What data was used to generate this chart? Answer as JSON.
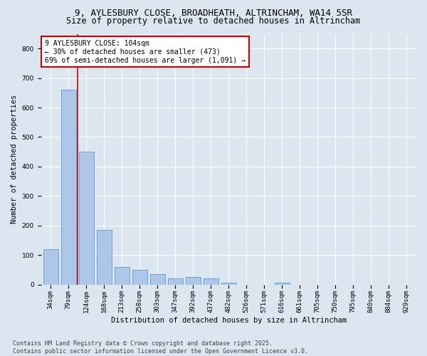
{
  "title_line1": "9, AYLESBURY CLOSE, BROADHEATH, ALTRINCHAM, WA14 5SR",
  "title_line2": "Size of property relative to detached houses in Altrincham",
  "xlabel": "Distribution of detached houses by size in Altrincham",
  "ylabel": "Number of detached properties",
  "categories": [
    "34sqm",
    "79sqm",
    "124sqm",
    "168sqm",
    "213sqm",
    "258sqm",
    "303sqm",
    "347sqm",
    "392sqm",
    "437sqm",
    "482sqm",
    "526sqm",
    "571sqm",
    "616sqm",
    "661sqm",
    "705sqm",
    "750sqm",
    "795sqm",
    "840sqm",
    "884sqm",
    "929sqm"
  ],
  "values": [
    120,
    660,
    450,
    185,
    60,
    50,
    35,
    20,
    25,
    20,
    5,
    0,
    0,
    5,
    0,
    0,
    0,
    0,
    0,
    0,
    0
  ],
  "bar_color": "#aec6e8",
  "bar_edge_color": "#5b9bd5",
  "vline_x_index": 1.5,
  "vline_color": "#cc0000",
  "annotation_text": "9 AYLESBURY CLOSE: 104sqm\n← 30% of detached houses are smaller (473)\n69% of semi-detached houses are larger (1,091) →",
  "annotation_box_color": "#ffffff",
  "annotation_box_edge": "#cc0000",
  "ylim": [
    0,
    850
  ],
  "yticks": [
    0,
    100,
    200,
    300,
    400,
    500,
    600,
    700,
    800
  ],
  "background_color": "#dce6f1",
  "footer_line1": "Contains HM Land Registry data © Crown copyright and database right 2025.",
  "footer_line2": "Contains public sector information licensed under the Open Government Licence v3.0.",
  "title_fontsize": 9,
  "subtitle_fontsize": 8.5,
  "axis_label_fontsize": 7.5,
  "tick_fontsize": 6.5,
  "annotation_fontsize": 7,
  "footer_fontsize": 6
}
